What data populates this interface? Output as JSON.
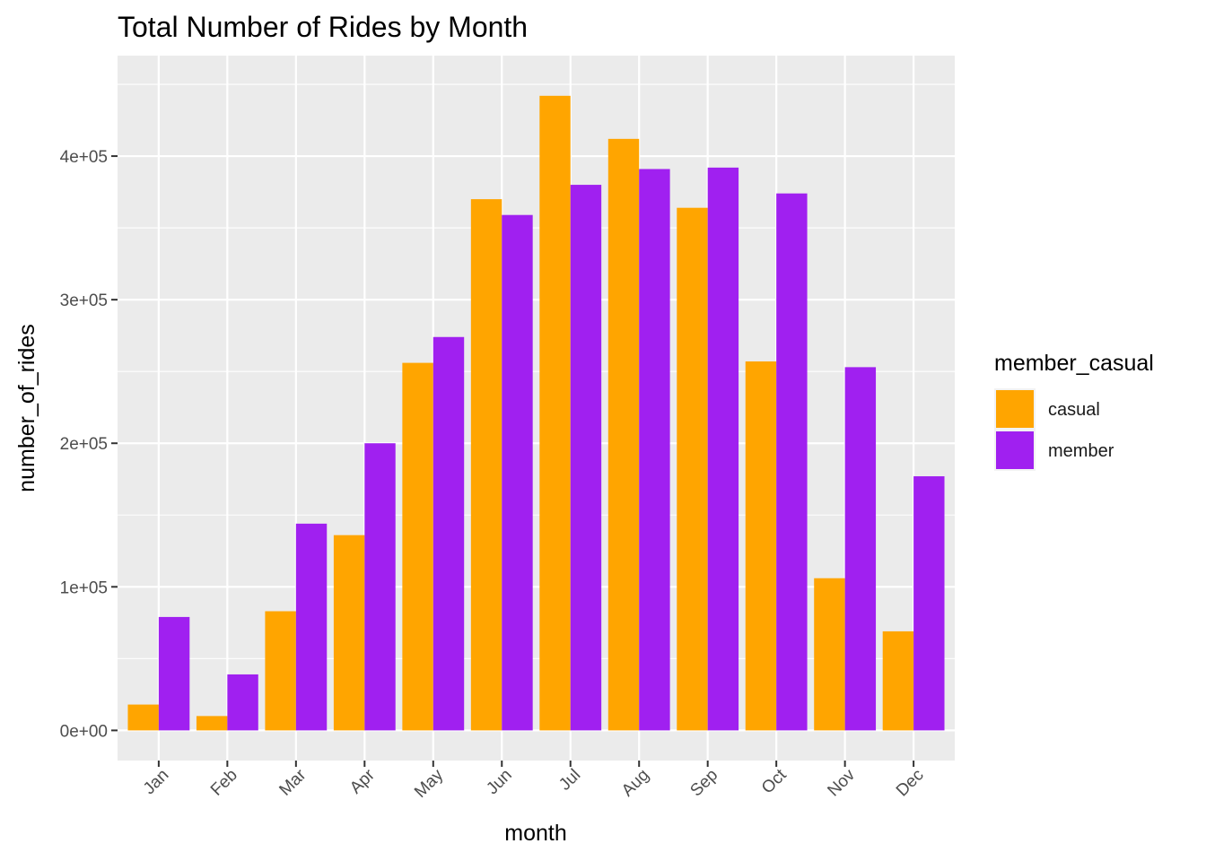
{
  "chart_data": {
    "type": "bar",
    "title": "Total Number of Rides by Month",
    "xlabel": "month",
    "ylabel": "number_of_rides",
    "categories": [
      "Jan",
      "Feb",
      "Mar",
      "Apr",
      "May",
      "Jun",
      "Jul",
      "Aug",
      "Sep",
      "Oct",
      "Nov",
      "Dec"
    ],
    "series": [
      {
        "name": "casual",
        "color": "#FFA500",
        "values": [
          18000,
          10000,
          83000,
          136000,
          256000,
          370000,
          442000,
          412000,
          364000,
          257000,
          106000,
          69000
        ]
      },
      {
        "name": "member",
        "color": "#A020F0",
        "values": [
          79000,
          39000,
          144000,
          200000,
          274000,
          359000,
          380000,
          391000,
          392000,
          374000,
          253000,
          177000
        ]
      }
    ],
    "ylim": [
      -21000,
      470000
    ],
    "yticks": [
      0,
      100000,
      200000,
      300000,
      400000
    ],
    "ytick_labels": [
      "0e+00",
      "1e+05",
      "2e+05",
      "3e+05",
      "4e+05"
    ],
    "legend_title": "member_casual",
    "legend_position": "right",
    "grid": true,
    "panel_background": "#EBEBEB",
    "grid_color": "#FFFFFF"
  }
}
